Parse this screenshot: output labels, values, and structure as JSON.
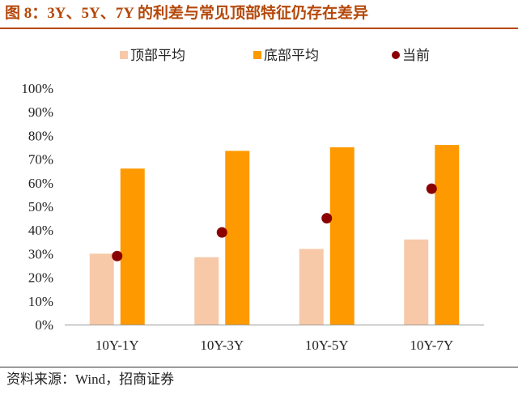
{
  "figure": {
    "title": "图 8：3Y、5Y、7Y 的利差与常见顶部特征仍存在差异",
    "source": "资料来源：Wind，招商证券"
  },
  "colors": {
    "title": "#b4480a",
    "top_avg": "#f7c9a8",
    "bottom_avg": "#ff9900",
    "current": "#8b0000"
  },
  "chart_data": {
    "type": "bar",
    "categories": [
      "10Y-1Y",
      "10Y-3Y",
      "10Y-5Y",
      "10Y-7Y"
    ],
    "series": [
      {
        "name": "顶部平均",
        "kind": "bar",
        "values": [
          30,
          28.5,
          32,
          36
        ]
      },
      {
        "name": "底部平均",
        "kind": "bar",
        "values": [
          66,
          73.5,
          75,
          76
        ]
      },
      {
        "name": "当前",
        "kind": "point",
        "values": [
          29,
          39,
          45,
          57.5
        ]
      }
    ],
    "ylim": [
      0,
      100
    ],
    "yticks": [
      "0%",
      "10%",
      "20%",
      "30%",
      "40%",
      "50%",
      "60%",
      "70%",
      "80%",
      "90%",
      "100%"
    ],
    "legend_position": "top",
    "grid": false
  }
}
